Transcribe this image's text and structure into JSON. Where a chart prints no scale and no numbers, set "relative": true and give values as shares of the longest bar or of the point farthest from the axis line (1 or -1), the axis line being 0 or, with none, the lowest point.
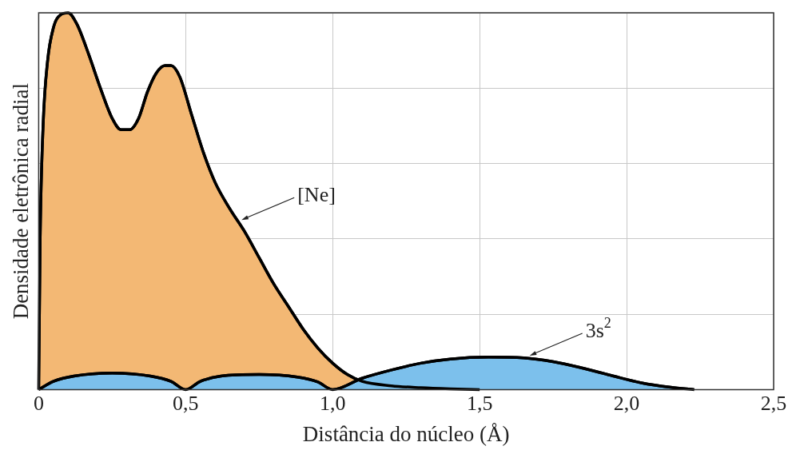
{
  "chart_data": {
    "type": "area",
    "relative": true,
    "xlabel": "Distância do núcleo (Å)",
    "ylabel": "Densidade eletrônica radial",
    "xlim": [
      0,
      2.5
    ],
    "xticks": [
      0,
      {
        "value": 0.5,
        "label": "0,5"
      },
      {
        "value": 1,
        "label": "1,0"
      },
      {
        "value": 1.5,
        "label": "1,5"
      },
      {
        "value": 2,
        "label": "2,0"
      },
      {
        "value": 2.5,
        "label": "2,5"
      }
    ],
    "grid": true,
    "legend": false,
    "marker": "none",
    "line_style": "solid",
    "series": [
      {
        "color": "#f3b874",
        "x": [
          0,
          0.005,
          0.015,
          0.03,
          0.05,
          0.075,
          0.1,
          0.13,
          0.17,
          0.21,
          0.25,
          0.28,
          0.31,
          0.34,
          0.37,
          0.4,
          0.43,
          0.45,
          0.48,
          0.52,
          0.56,
          0.6,
          0.65,
          0.7,
          0.75,
          0.8,
          0.85,
          0.9,
          0.95,
          1.0,
          1.05,
          1.1,
          1.2,
          1.3,
          1.4,
          1.5
        ],
        "values": [
          0,
          0.4,
          0.7,
          0.87,
          0.96,
          0.995,
          1,
          0.97,
          0.89,
          0.8,
          0.72,
          0.69,
          0.69,
          0.72,
          0.79,
          0.84,
          0.86,
          0.86,
          0.83,
          0.73,
          0.63,
          0.55,
          0.48,
          0.42,
          0.35,
          0.28,
          0.22,
          0.16,
          0.11,
          0.07,
          0.04,
          0.022,
          0.01,
          0.005,
          0.002,
          0
        ]
      },
      {
        "color": "#7cc0ec",
        "x": [
          0,
          0.05,
          0.12,
          0.25,
          0.38,
          0.45,
          0.5,
          0.55,
          0.62,
          0.75,
          0.88,
          0.95,
          1.0,
          1.1,
          1.2,
          1.3,
          1.4,
          1.53,
          1.65,
          1.75,
          1.85,
          1.95,
          2.05,
          2.15,
          2.23
        ],
        "values": [
          0,
          0.022,
          0.036,
          0.044,
          0.036,
          0.022,
          0,
          0.022,
          0.036,
          0.04,
          0.033,
          0.02,
          0,
          0.03,
          0.052,
          0.07,
          0.081,
          0.086,
          0.084,
          0.074,
          0.057,
          0.037,
          0.018,
          0.006,
          0
        ]
      }
    ],
    "annotations": [
      {
        "text": "[Ne]",
        "x": 0.69,
        "y": 0.45
      },
      {
        "text": "3s$^{2}$",
        "x": 1.67,
        "y": 0.09
      }
    ]
  }
}
